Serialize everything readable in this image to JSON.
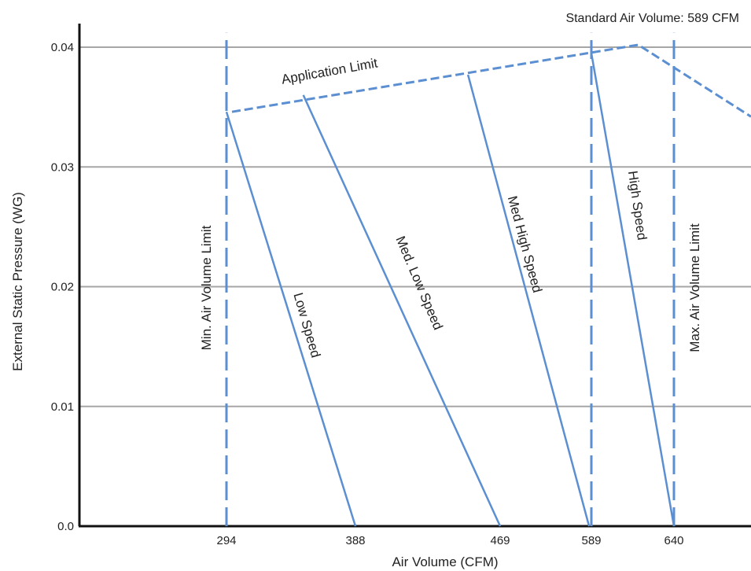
{
  "chart_data": {
    "type": "line",
    "title": "",
    "note": "Standard Air Volume: 589 CFM",
    "xlabel": "Air Volume (CFM)",
    "ylabel": "External Static Pressure (WG)",
    "xlim": [
      168,
      845
    ],
    "ylim": [
      0.0,
      0.0412
    ],
    "x_ticks": [
      294,
      388,
      469,
      589,
      640
    ],
    "y_ticks": [
      {
        "value": 0.0,
        "label": "0.0"
      },
      {
        "value": 0.01,
        "label": "0.01"
      },
      {
        "value": 0.02,
        "label": "0.02"
      },
      {
        "value": 0.03,
        "label": "0.03"
      },
      {
        "value": 0.04,
        "label": "0.04"
      }
    ],
    "grid": "horizontal",
    "colors": {
      "series": "#5b8fd1",
      "grid": "#a6a6a6",
      "axis": "#111111"
    },
    "series": [
      {
        "name": "Low Speed",
        "style": "solid",
        "x": [
          294,
          388
        ],
        "y": [
          0.0346,
          0.0
        ]
      },
      {
        "name": "Med. Low Speed",
        "style": "solid",
        "x": [
          350,
          469
        ],
        "y": [
          0.036,
          0.0
        ]
      },
      {
        "name": "Med High Speed",
        "style": "solid",
        "x": [
          451,
          586
        ],
        "y": [
          0.0377,
          0.0
        ]
      },
      {
        "name": "High Speed",
        "style": "solid",
        "x": [
          589,
          640
        ],
        "y": [
          0.0395,
          0.0
        ]
      },
      {
        "name": "Application Limit",
        "style": "dashed",
        "x": [
          298,
          618,
          845
        ],
        "y": [
          0.0346,
          0.0402,
          0.0342
        ]
      },
      {
        "name": "Min. Air Volume Limit",
        "style": "dashed",
        "x": [
          294,
          294
        ],
        "y": [
          0.0,
          0.0412
        ]
      },
      {
        "name": "Max. Air Volume Limit",
        "style": "dashed",
        "x": [
          640,
          640
        ],
        "y": [
          0.0,
          0.0412
        ]
      },
      {
        "name": "",
        "style": "dashed",
        "x": [
          589,
          589
        ],
        "y": [
          0.0,
          0.0412
        ]
      }
    ]
  }
}
